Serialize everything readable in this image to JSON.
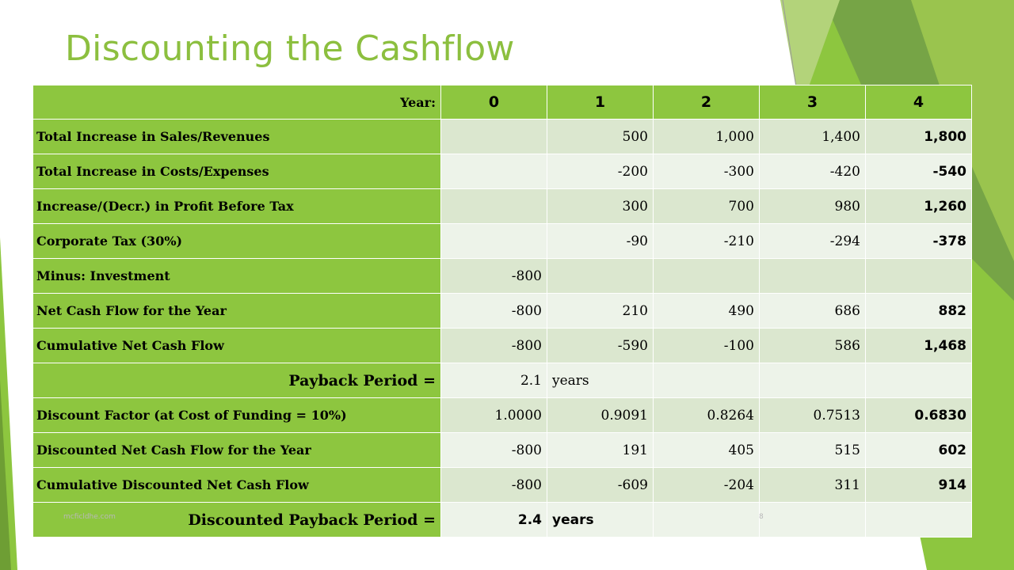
{
  "title": "Discounting the Cashflow",
  "header": {
    "label": "Year:",
    "years": [
      "0",
      "1",
      "2",
      "3",
      "4"
    ]
  },
  "rows": [
    {
      "label": "Total Increase in Sales/Revenues",
      "values": [
        "",
        "500",
        "1,000",
        "1,400",
        "1,800"
      ]
    },
    {
      "label": "Total Increase in Costs/Expenses",
      "values": [
        "",
        "-200",
        "-300",
        "-420",
        "-540"
      ]
    },
    {
      "label": "Increase/(Decr.) in Profit Before Tax",
      "values": [
        "",
        "300",
        "700",
        "980",
        "1,260"
      ]
    },
    {
      "label": "Corporate Tax (30%)",
      "values": [
        "",
        "-90",
        "-210",
        "-294",
        "-378"
      ]
    },
    {
      "label": "Minus: Investment",
      "values": [
        "-800",
        "",
        "",
        "",
        ""
      ]
    },
    {
      "label": "Net Cash Flow for the Year",
      "values": [
        "-800",
        "210",
        "490",
        "686",
        "882"
      ]
    },
    {
      "label": "Cumulative Net Cash Flow",
      "values": [
        "-800",
        "-590",
        "-100",
        "586",
        "1,468"
      ]
    }
  ],
  "payback": {
    "label": "Payback Period =",
    "value": "2.1",
    "unit": "years"
  },
  "rows2": [
    {
      "label": "Discount Factor (at Cost of Funding = 10%)",
      "values": [
        "1.0000",
        "0.9091",
        "0.8264",
        "0.7513",
        "0.6830"
      ]
    },
    {
      "label": "Discounted Net Cash Flow for the Year",
      "values": [
        "-800",
        "191",
        "405",
        "515",
        "602"
      ]
    },
    {
      "label": "Cumulative Discounted Net Cash Flow",
      "values": [
        "-800",
        "-609",
        "-204",
        "311",
        "914"
      ]
    }
  ],
  "discounted_payback": {
    "label": "Discounted Payback Period =",
    "value": "2.4",
    "unit": "years"
  },
  "footer": {
    "left": "mcficldhe.com",
    "page": "8"
  },
  "colors": {
    "title": "#8cbf3f",
    "label_bg": "#8dc63f",
    "cell_dark": "#dbe7cf",
    "cell_light": "#edf3e9"
  }
}
